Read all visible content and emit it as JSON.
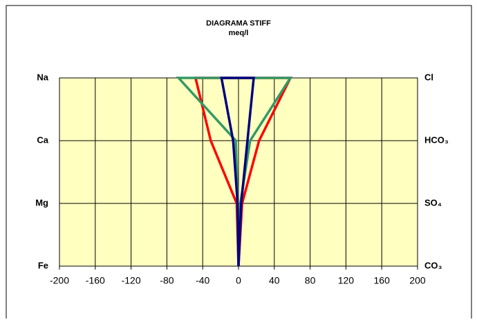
{
  "chart_data": {
    "type": "stiff",
    "title": "DIAGRAMA STIFF",
    "subtitle": "meq/l",
    "cations": [
      "Na",
      "Ca",
      "Mg",
      "Fe"
    ],
    "anions": [
      "Cl",
      "HCO₃",
      "SO₄",
      "CO₃"
    ],
    "series": [
      {
        "color": "#ff0000",
        "cation_values": [
          -48,
          -31,
          -2,
          0
        ],
        "anion_values": [
          58,
          23,
          4,
          0
        ]
      },
      {
        "color": "#339966",
        "cation_values": [
          -67,
          -3,
          -1,
          0
        ],
        "anion_values": [
          58,
          13,
          2,
          0
        ]
      },
      {
        "color": "#000080",
        "cation_values": [
          -19,
          -6,
          -1,
          0
        ],
        "anion_values": [
          17,
          10,
          3,
          0
        ]
      }
    ],
    "xlim": [
      -200,
      200
    ],
    "xticks": [
      -200,
      -160,
      -120,
      -80,
      -40,
      0,
      40,
      80,
      120,
      160,
      200
    ],
    "grid": true,
    "plot_background": "#ffffc0"
  }
}
